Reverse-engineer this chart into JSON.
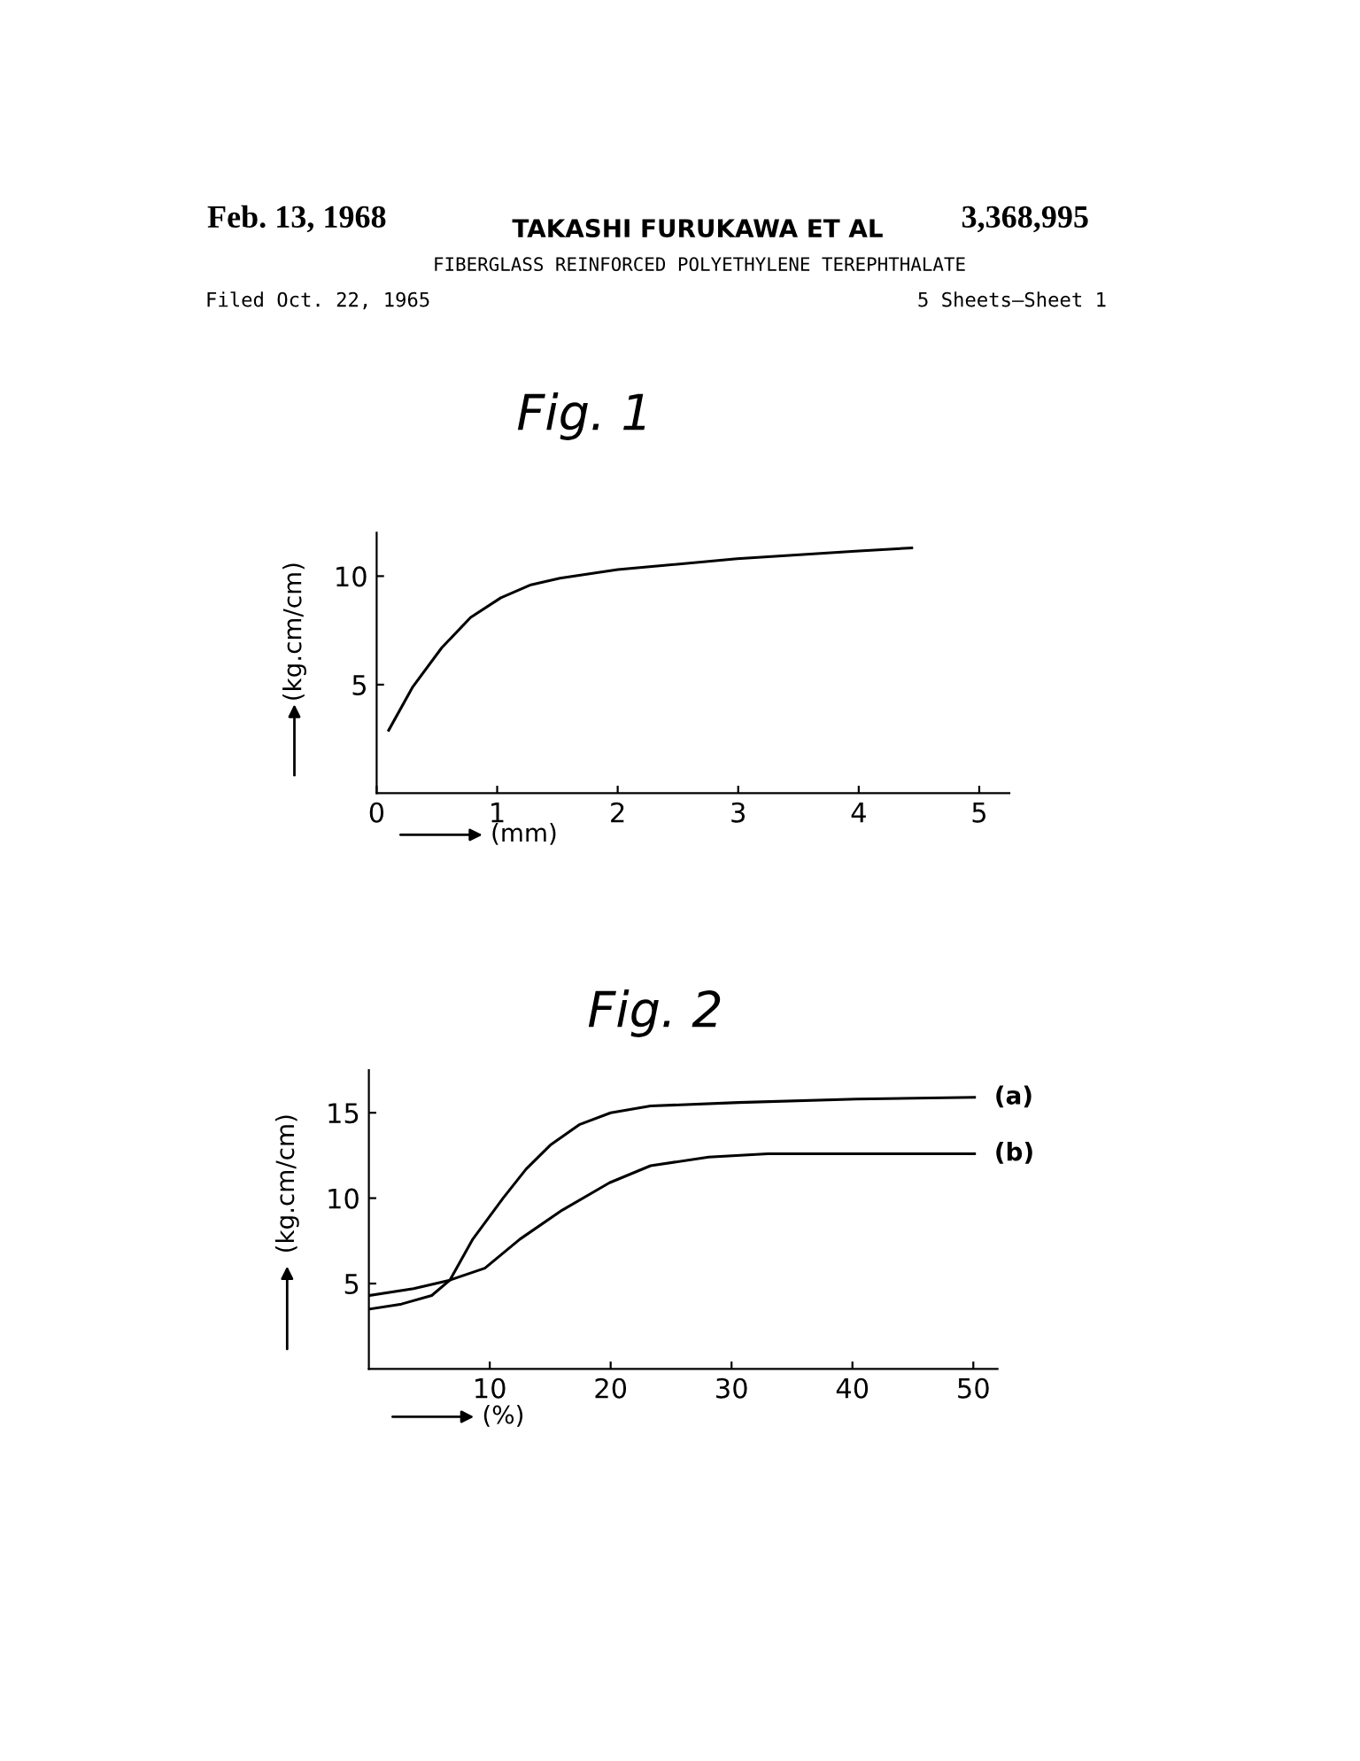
{
  "chart_data": [
    {
      "type": "line",
      "title": "Fig. 1",
      "xlabel": "(mm)",
      "ylabel": "(kg.cm/cm)",
      "annotations": [
        "Feb. 13, 1968",
        "TAKASHI FURUKAWA ET AL",
        "3,368,995",
        "FIBERGLASS REINFORCED POLYETHYLENE TEREPHTHALATE",
        "Filed Oct. 22, 1965",
        "5 Sheets—Sheet 1"
      ],
      "x": [
        0.1,
        0.3,
        0.54,
        0.78,
        1.03,
        1.28,
        1.52,
        2.0,
        2.99,
        3.97,
        4.44
      ],
      "series": [
        {
          "color": "#000000",
          "values": [
            2.9,
            4.9,
            6.7,
            8.1,
            9.0,
            9.6,
            9.9,
            10.3,
            10.8,
            11.15,
            11.3
          ]
        }
      ],
      "xlim": [
        0,
        5.25
      ],
      "xticks": [
        0,
        1,
        2,
        3,
        4,
        5
      ],
      "ylim": [
        0,
        12
      ],
      "yticks": [
        5,
        10
      ],
      "grid": false,
      "legend": false,
      "marker": "none",
      "line_style": "solid"
    },
    {
      "type": "line",
      "title": "Fig. 2",
      "xlabel": "(%)",
      "ylabel": "(kg.cm/cm)",
      "x": [
        0,
        2.7,
        5.2,
        6.7,
        8.6,
        11.1,
        13.0,
        15.0,
        17.4,
        20.0,
        23.3,
        30.6,
        40.3,
        50.1
      ],
      "series": [
        {
          "name": "(a)",
          "color": "#000000",
          "values": [
            3.5,
            3.8,
            4.3,
            5.2,
            7.6,
            10.0,
            11.7,
            13.1,
            14.3,
            15.0,
            15.4,
            15.6,
            15.8,
            15.9
          ]
        },
        {
          "name": "(b)",
          "color": "#000000",
          "x": [
            0,
            3.7,
            6.7,
            9.6,
            12.5,
            16.0,
            19.9,
            23.3,
            28.1,
            33.0,
            40.3,
            50.1
          ],
          "values": [
            4.3,
            4.7,
            5.2,
            5.9,
            7.6,
            9.3,
            10.9,
            11.9,
            12.4,
            12.6,
            12.6,
            12.6
          ]
        }
      ],
      "xlim": [
        0,
        52
      ],
      "xticks": [
        10,
        20,
        30,
        40,
        50
      ],
      "ylim": [
        0,
        17.5
      ],
      "yticks": [
        5,
        10,
        15
      ],
      "grid": false,
      "legend": false,
      "marker": "none",
      "line_style": "solid"
    }
  ]
}
